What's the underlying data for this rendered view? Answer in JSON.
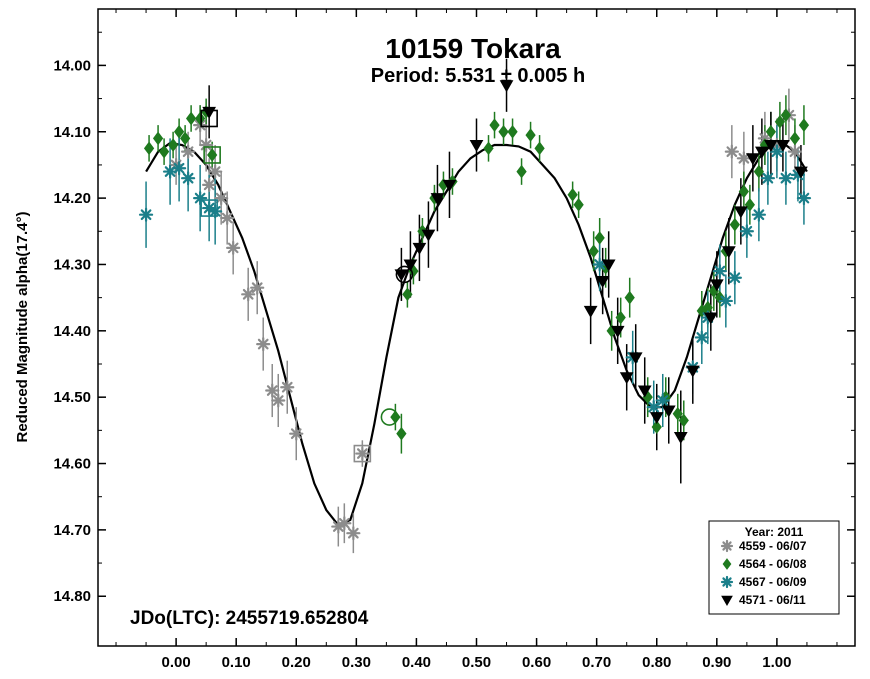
{
  "chart_data": {
    "type": "scatter",
    "title": "10159 Tokara",
    "subtitle": "Period: 5.531 ± 0.005 h",
    "ylabel": "Reduced Magnitude alpha(17.4°)",
    "xlabel": "",
    "xlim": [
      -0.13,
      1.13
    ],
    "ylim": [
      14.875,
      13.915
    ],
    "y_inverted": true,
    "grid": false,
    "x_ticks": [
      "0.00",
      "0.10",
      "0.20",
      "0.30",
      "0.40",
      "0.50",
      "0.60",
      "0.70",
      "0.80",
      "0.90",
      "1.00"
    ],
    "y_ticks": [
      "14.00",
      "14.10",
      "14.20",
      "14.30",
      "14.40",
      "14.50",
      "14.60",
      "14.70",
      "14.80"
    ],
    "annotation": "JDo(LTC): 2455719.652804",
    "legend": {
      "title": "Year: 2011",
      "placement": "bottom-right"
    },
    "fit_curve": {
      "color": "#000000",
      "points": [
        [
          -0.05,
          14.16
        ],
        [
          -0.03,
          14.13
        ],
        [
          -0.01,
          14.117
        ],
        [
          0.01,
          14.12
        ],
        [
          0.03,
          14.13
        ],
        [
          0.05,
          14.15
        ],
        [
          0.07,
          14.18
        ],
        [
          0.09,
          14.22
        ],
        [
          0.11,
          14.26
        ],
        [
          0.13,
          14.31
        ],
        [
          0.15,
          14.37
        ],
        [
          0.17,
          14.43
        ],
        [
          0.19,
          14.5
        ],
        [
          0.21,
          14.57
        ],
        [
          0.23,
          14.63
        ],
        [
          0.25,
          14.67
        ],
        [
          0.27,
          14.693
        ],
        [
          0.29,
          14.685
        ],
        [
          0.31,
          14.63
        ],
        [
          0.33,
          14.54
        ],
        [
          0.35,
          14.44
        ],
        [
          0.37,
          14.35
        ],
        [
          0.39,
          14.3
        ],
        [
          0.41,
          14.26
        ],
        [
          0.43,
          14.22
        ],
        [
          0.45,
          14.19
        ],
        [
          0.47,
          14.16
        ],
        [
          0.49,
          14.14
        ],
        [
          0.51,
          14.128
        ],
        [
          0.53,
          14.12
        ],
        [
          0.55,
          14.12
        ],
        [
          0.57,
          14.122
        ],
        [
          0.59,
          14.13
        ],
        [
          0.61,
          14.15
        ],
        [
          0.63,
          14.17
        ],
        [
          0.65,
          14.2
        ],
        [
          0.67,
          14.24
        ],
        [
          0.69,
          14.29
        ],
        [
          0.71,
          14.35
        ],
        [
          0.73,
          14.41
        ],
        [
          0.75,
          14.46
        ],
        [
          0.77,
          14.497
        ],
        [
          0.79,
          14.515
        ],
        [
          0.81,
          14.515
        ],
        [
          0.83,
          14.49
        ],
        [
          0.85,
          14.44
        ],
        [
          0.87,
          14.38
        ],
        [
          0.89,
          14.32
        ],
        [
          0.91,
          14.26
        ],
        [
          0.93,
          14.21
        ],
        [
          0.95,
          14.17
        ],
        [
          0.97,
          14.14
        ],
        [
          0.99,
          14.12
        ],
        [
          1.01,
          14.117
        ],
        [
          1.03,
          14.13
        ],
        [
          1.05,
          14.16
        ]
      ]
    },
    "series": [
      {
        "name": "4559 - 06/07",
        "color": "#8c8c8c",
        "marker": "asterisk",
        "points": [
          [
            0.0,
            14.15,
            0.03
          ],
          [
            0.02,
            14.13,
            0.03
          ],
          [
            0.04,
            14.09,
            0.03
          ],
          [
            0.05,
            14.12,
            0.04
          ],
          [
            0.055,
            14.18,
            0.04
          ],
          [
            0.065,
            14.16,
            0.04
          ],
          [
            0.075,
            14.2,
            0.04
          ],
          [
            0.085,
            14.23,
            0.04
          ],
          [
            0.095,
            14.275,
            0.04
          ],
          [
            0.12,
            14.345,
            0.04
          ],
          [
            0.135,
            14.335,
            0.04
          ],
          [
            0.145,
            14.42,
            0.04
          ],
          [
            0.16,
            14.49,
            0.04
          ],
          [
            0.17,
            14.505,
            0.04
          ],
          [
            0.185,
            14.485,
            0.04
          ],
          [
            0.2,
            14.555,
            0.04
          ],
          [
            0.27,
            14.695,
            0.03
          ],
          [
            0.28,
            14.69,
            0.03
          ],
          [
            0.295,
            14.705,
            0.03
          ],
          [
            0.31,
            14.585,
            0.02
          ],
          [
            0.925,
            14.13,
            0.04
          ],
          [
            0.945,
            14.14,
            0.04
          ],
          [
            0.98,
            14.11,
            0.04
          ],
          [
            1.0,
            14.12,
            0.04
          ],
          [
            1.02,
            14.075,
            0.04
          ],
          [
            1.03,
            14.13,
            0.04
          ]
        ]
      },
      {
        "name": "4564 - 06/08",
        "color": "#1f7a1f",
        "marker": "diamond",
        "points": [
          [
            -0.045,
            14.125,
            0.02
          ],
          [
            -0.03,
            14.11,
            0.02
          ],
          [
            -0.02,
            14.13,
            0.02
          ],
          [
            -0.005,
            14.12,
            0.02
          ],
          [
            0.005,
            14.1,
            0.02
          ],
          [
            0.015,
            14.11,
            0.02
          ],
          [
            0.025,
            14.08,
            0.02
          ],
          [
            0.04,
            14.08,
            0.02
          ],
          [
            0.05,
            14.07,
            0.02
          ],
          [
            0.06,
            14.135,
            0.02
          ],
          [
            0.365,
            14.53,
            0.02
          ],
          [
            0.375,
            14.555,
            0.03
          ],
          [
            0.385,
            14.345,
            0.02
          ],
          [
            0.395,
            14.31,
            0.02
          ],
          [
            0.41,
            14.25,
            0.02
          ],
          [
            0.43,
            14.2,
            0.02
          ],
          [
            0.445,
            14.18,
            0.02
          ],
          [
            0.46,
            14.175,
            0.02
          ],
          [
            0.52,
            14.125,
            0.02
          ],
          [
            0.53,
            14.09,
            0.02
          ],
          [
            0.545,
            14.1,
            0.02
          ],
          [
            0.56,
            14.1,
            0.02
          ],
          [
            0.575,
            14.16,
            0.02
          ],
          [
            0.59,
            14.105,
            0.02
          ],
          [
            0.605,
            14.125,
            0.02
          ],
          [
            0.66,
            14.195,
            0.02
          ],
          [
            0.67,
            14.21,
            0.02
          ],
          [
            0.695,
            14.28,
            0.03
          ],
          [
            0.705,
            14.26,
            0.03
          ],
          [
            0.715,
            14.305,
            0.03
          ],
          [
            0.725,
            14.4,
            0.03
          ],
          [
            0.74,
            14.38,
            0.03
          ],
          [
            0.755,
            14.35,
            0.03
          ],
          [
            0.785,
            14.5,
            0.03
          ],
          [
            0.8,
            14.545,
            0.03
          ],
          [
            0.815,
            14.5,
            0.03
          ],
          [
            0.835,
            14.525,
            0.03
          ],
          [
            0.845,
            14.535,
            0.03
          ],
          [
            0.875,
            14.37,
            0.03
          ],
          [
            0.885,
            14.365,
            0.03
          ],
          [
            0.895,
            14.34,
            0.03
          ],
          [
            0.905,
            14.35,
            0.03
          ],
          [
            0.915,
            14.28,
            0.03
          ],
          [
            0.93,
            14.24,
            0.03
          ],
          [
            0.945,
            14.19,
            0.03
          ],
          [
            0.955,
            14.21,
            0.03
          ],
          [
            0.97,
            14.16,
            0.03
          ],
          [
            0.98,
            14.12,
            0.03
          ],
          [
            0.99,
            14.1,
            0.03
          ],
          [
            1.005,
            14.085,
            0.03
          ],
          [
            1.015,
            14.075,
            0.03
          ],
          [
            1.03,
            14.11,
            0.03
          ],
          [
            1.045,
            14.09,
            0.03
          ]
        ]
      },
      {
        "name": "4567 - 06/09",
        "color": "#1b7f8a",
        "marker": "asterisk",
        "points": [
          [
            -0.05,
            14.225,
            0.05
          ],
          [
            -0.01,
            14.16,
            0.05
          ],
          [
            0.005,
            14.155,
            0.05
          ],
          [
            0.02,
            14.17,
            0.05
          ],
          [
            0.04,
            14.2,
            0.05
          ],
          [
            0.055,
            14.215,
            0.05
          ],
          [
            0.065,
            14.22,
            0.05
          ],
          [
            0.705,
            14.3,
            0.04
          ],
          [
            0.76,
            14.44,
            0.04
          ],
          [
            0.795,
            14.515,
            0.04
          ],
          [
            0.81,
            14.505,
            0.04
          ],
          [
            0.86,
            14.455,
            0.04
          ],
          [
            0.875,
            14.41,
            0.04
          ],
          [
            0.885,
            14.38,
            0.04
          ],
          [
            0.905,
            14.31,
            0.04
          ],
          [
            0.915,
            14.355,
            0.04
          ],
          [
            0.93,
            14.32,
            0.04
          ],
          [
            0.95,
            14.25,
            0.04
          ],
          [
            0.97,
            14.225,
            0.04
          ],
          [
            0.985,
            14.17,
            0.04
          ],
          [
            1.0,
            14.13,
            0.04
          ],
          [
            1.015,
            14.17,
            0.04
          ],
          [
            1.035,
            14.165,
            0.04
          ],
          [
            1.045,
            14.2,
            0.04
          ]
        ]
      },
      {
        "name": "4571 - 06/11",
        "color": "#000000",
        "marker": "triangle-down",
        "points": [
          [
            0.055,
            14.07,
            0.04
          ],
          [
            0.375,
            14.315,
            0.04
          ],
          [
            0.39,
            14.3,
            0.05
          ],
          [
            0.405,
            14.275,
            0.05
          ],
          [
            0.42,
            14.255,
            0.05
          ],
          [
            0.435,
            14.2,
            0.05
          ],
          [
            0.455,
            14.18,
            0.05
          ],
          [
            0.5,
            14.12,
            0.04
          ],
          [
            0.55,
            14.03,
            0.04
          ],
          [
            0.69,
            14.37,
            0.05
          ],
          [
            0.71,
            14.325,
            0.05
          ],
          [
            0.72,
            14.3,
            0.05
          ],
          [
            0.735,
            14.4,
            0.05
          ],
          [
            0.75,
            14.47,
            0.05
          ],
          [
            0.765,
            14.44,
            0.05
          ],
          [
            0.78,
            14.49,
            0.05
          ],
          [
            0.8,
            14.53,
            0.05
          ],
          [
            0.82,
            14.52,
            0.05
          ],
          [
            0.84,
            14.56,
            0.07
          ],
          [
            0.86,
            14.46,
            0.05
          ],
          [
            0.89,
            14.38,
            0.05
          ],
          [
            0.9,
            14.33,
            0.05
          ],
          [
            0.92,
            14.28,
            0.05
          ],
          [
            0.94,
            14.22,
            0.05
          ],
          [
            0.96,
            14.14,
            0.05
          ],
          [
            0.975,
            14.13,
            0.05
          ],
          [
            0.99,
            14.12,
            0.05
          ],
          [
            1.01,
            14.12,
            0.04
          ],
          [
            1.04,
            14.16,
            0.04
          ]
        ]
      }
    ],
    "highlighted": [
      {
        "x": 0.055,
        "y": 14.08,
        "color": "#000000",
        "shape": "square"
      },
      {
        "x": 0.06,
        "y": 14.135,
        "color": "#1f7a1f",
        "shape": "square"
      },
      {
        "x": 0.055,
        "y": 14.215,
        "color": "#1b7f8a",
        "shape": "square"
      },
      {
        "x": 0.31,
        "y": 14.585,
        "color": "#8c8c8c",
        "shape": "square"
      },
      {
        "x": 0.38,
        "y": 14.315,
        "color": "#000000",
        "shape": "circle"
      },
      {
        "x": 0.355,
        "y": 14.53,
        "color": "#1f7a1f",
        "shape": "circle"
      }
    ]
  }
}
